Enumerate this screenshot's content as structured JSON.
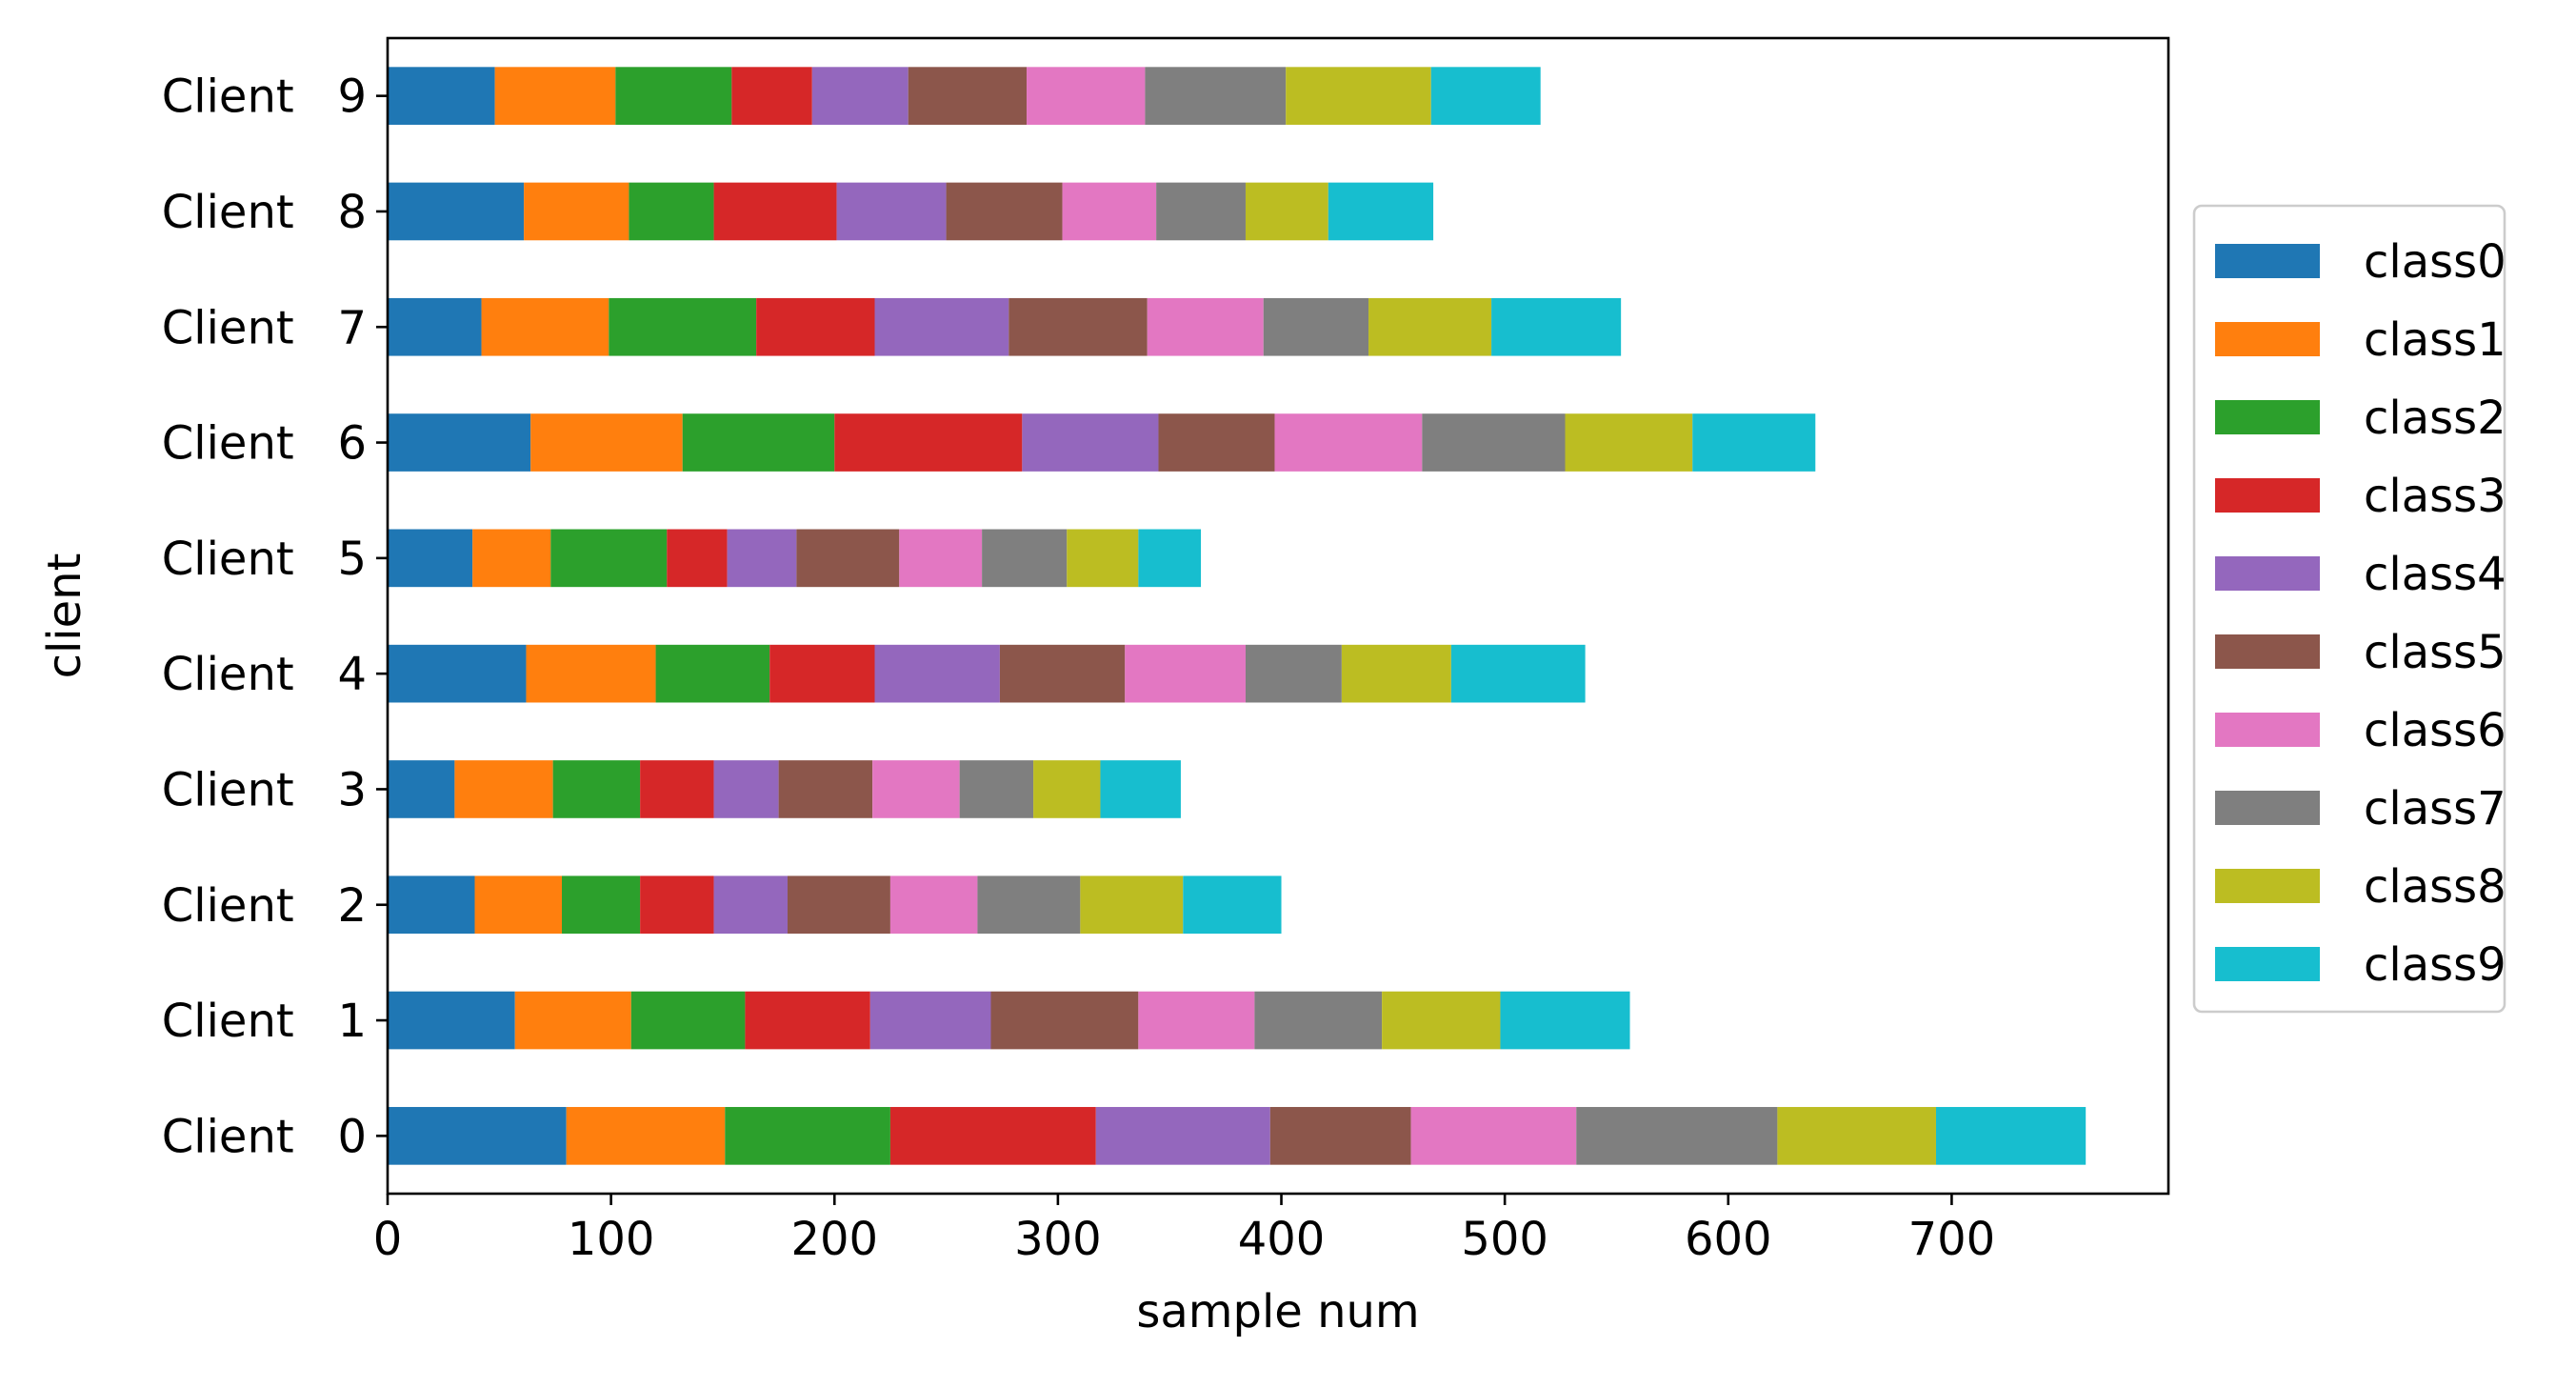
{
  "chart_data": {
    "type": "bar",
    "orientation": "horizontal",
    "stacked": true,
    "title": "",
    "xlabel": "sample num",
    "ylabel": "client",
    "xlim": [
      0,
      797
    ],
    "x_ticks": [
      0,
      100,
      200,
      300,
      400,
      500,
      600,
      700
    ],
    "grid": false,
    "legend_position": "center-right, outside plot",
    "categories": [
      "Client   0",
      "Client   1",
      "Client   2",
      "Client   3",
      "Client   4",
      "Client   5",
      "Client   6",
      "Client   7",
      "Client   8",
      "Client   9"
    ],
    "series": [
      {
        "name": "class0",
        "color": "#1f77b4",
        "values": [
          80,
          57,
          39,
          30,
          62,
          38,
          64,
          42,
          61,
          48
        ]
      },
      {
        "name": "class1",
        "color": "#ff7f0e",
        "values": [
          71,
          52,
          39,
          44,
          58,
          35,
          68,
          57,
          47,
          54
        ]
      },
      {
        "name": "class2",
        "color": "#2ca02c",
        "values": [
          74,
          51,
          35,
          39,
          51,
          52,
          68,
          66,
          38,
          52
        ]
      },
      {
        "name": "class3",
        "color": "#d62728",
        "values": [
          92,
          56,
          33,
          33,
          47,
          27,
          84,
          53,
          55,
          36
        ]
      },
      {
        "name": "class4",
        "color": "#9467bd",
        "values": [
          78,
          54,
          33,
          29,
          56,
          31,
          61,
          60,
          49,
          43
        ]
      },
      {
        "name": "class5",
        "color": "#8c564b",
        "values": [
          63,
          66,
          46,
          42,
          56,
          46,
          52,
          62,
          52,
          53
        ]
      },
      {
        "name": "class6",
        "color": "#e377c2",
        "values": [
          74,
          52,
          39,
          39,
          54,
          37,
          66,
          52,
          42,
          53
        ]
      },
      {
        "name": "class7",
        "color": "#7f7f7f",
        "values": [
          90,
          57,
          46,
          33,
          43,
          38,
          64,
          47,
          40,
          63
        ]
      },
      {
        "name": "class8",
        "color": "#bcbd22",
        "values": [
          71,
          53,
          46,
          30,
          49,
          32,
          57,
          55,
          37,
          65
        ]
      },
      {
        "name": "class9",
        "color": "#17becf",
        "values": [
          67,
          58,
          44,
          36,
          60,
          28,
          55,
          58,
          47,
          49
        ]
      }
    ]
  }
}
